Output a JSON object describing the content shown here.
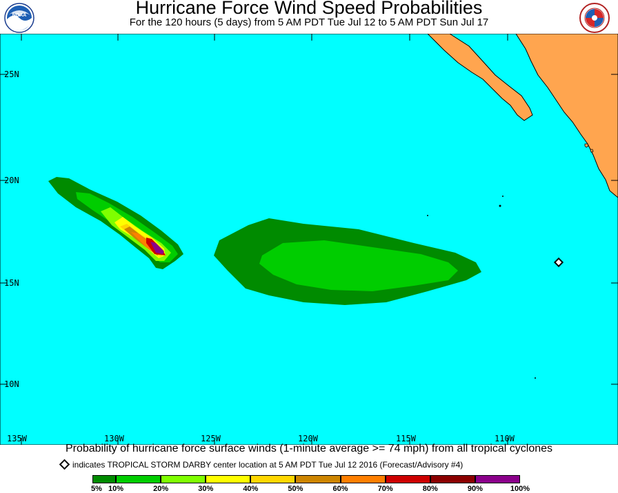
{
  "header": {
    "title": "Hurricane Force Wind Speed Probabilities",
    "subtitle": "For the 120 hours (5 days) from 5 AM PDT Tue Jul 12 to 5 AM PDT Sun Jul 17"
  },
  "logos": {
    "left": {
      "icon": "noaa-logo-icon",
      "text": "NOAA"
    },
    "right": {
      "icon": "national-weather-service-logo-icon",
      "text": "NATIONAL WEATHER SERVICE"
    }
  },
  "map": {
    "ocean_color": "#00ffff",
    "land_color": "#ffa54f",
    "lon_ticks": [
      "135W",
      "130W",
      "125W",
      "120W",
      "115W",
      "110W"
    ],
    "lat_ticks": [
      "25N",
      "20N",
      "15N",
      "10N"
    ]
  },
  "caption": "Probability of hurricane force surface winds (1-minute average >= 74 mph) from all tropical cyclones",
  "storm_note": "indicates TROPICAL STORM DARBY center location at 5 AM PDT Tue Jul 12 2016 (Forecast/Advisory #4)",
  "legend": {
    "labels": [
      "5%",
      "10%",
      "20%",
      "30%",
      "40%",
      "50%",
      "60%",
      "70%",
      "80%",
      "90%",
      "100%"
    ],
    "colors": [
      "#008b00",
      "#00cd00",
      "#7fff00",
      "#ffff00",
      "#ffd700",
      "#cd8500",
      "#ff7f00",
      "#cd0000",
      "#8b0000",
      "#8b008b"
    ]
  }
}
